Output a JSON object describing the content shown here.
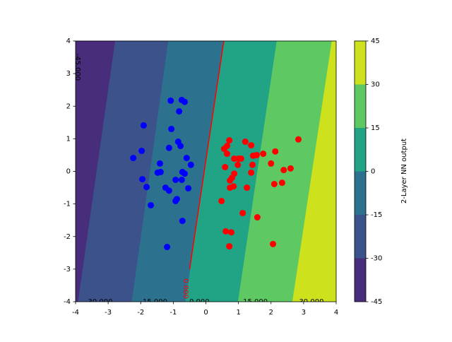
{
  "chart_data": {
    "type": "contour",
    "xlim": [
      -4,
      4
    ],
    "ylim": [
      -4,
      4
    ],
    "xticks": [
      -4,
      -3,
      -2,
      -1,
      0,
      1,
      2,
      3,
      4
    ],
    "yticks": [
      -4,
      -3,
      -2,
      -1,
      0,
      1,
      2,
      3,
      4
    ],
    "contour": {
      "levels": [
        -45,
        -30,
        -15,
        0,
        15,
        30,
        45
      ],
      "colors": [
        "#472d7b",
        "#3b528b",
        "#2c728e",
        "#21a386",
        "#5ec962",
        "#cde11d"
      ],
      "line_x_at_ymin": [
        -5.6,
        -3.92,
        -2.27,
        -0.62,
        0.99,
        2.66,
        4.3
      ],
      "line_x_at_ymax": [
        -4.4,
        -2.78,
        -1.15,
        0.55,
        2.18,
        3.87,
        5.5
      ]
    },
    "contour_labels": [
      {
        "text": "-45.000",
        "x": -3.93,
        "y": 3.2,
        "color": "#000000"
      },
      {
        "text": "-30.000",
        "x": -3.28,
        "y": -4,
        "color": "#000000"
      },
      {
        "text": "-15.000",
        "x": -1.6,
        "y": -4,
        "color": "#000000"
      },
      {
        "text": "0.000",
        "x": -0.62,
        "y": -3.6,
        "color": "#ff0000"
      },
      {
        "text": "0.000",
        "x": -0.2,
        "y": -4,
        "color": "#000000"
      },
      {
        "text": "15.000",
        "x": 1.52,
        "y": -4,
        "color": "#000000"
      },
      {
        "text": "30.000",
        "x": 3.24,
        "y": -4,
        "color": "#000000"
      }
    ],
    "decision_boundary": {
      "x": [
        -0.5,
        0.55
      ],
      "y": [
        -3,
        4
      ],
      "color": "#ff0000"
    },
    "series": [
      {
        "color": "#0000ff",
        "x": [
          -1.08,
          -0.74,
          -0.65,
          -0.82,
          -1.91,
          -1.06,
          -0.85,
          -0.78,
          -1.97,
          -1.13,
          -0.59,
          -2.23,
          -1.41,
          -0.46,
          -1.39,
          -0.72,
          -1.48,
          -0.65,
          -1.95,
          -0.93,
          -0.74,
          -1.82,
          -1.24,
          -0.54,
          -1.13,
          -1.69,
          -0.89,
          -0.93,
          -0.72,
          -1.19
        ],
        "y": [
          2.17,
          2.19,
          2.13,
          1.84,
          1.41,
          1.3,
          0.91,
          0.78,
          0.63,
          0.72,
          0.41,
          0.41,
          0.24,
          0.2,
          -0.02,
          -0.02,
          -0.04,
          -0.07,
          -0.24,
          -0.26,
          -0.26,
          -0.48,
          -0.5,
          -0.52,
          -0.59,
          -1.04,
          -0.85,
          -0.91,
          -1.52,
          -2.32
        ]
      },
      {
        "color": "#ff0000",
        "x": [
          2.84,
          0.72,
          1.21,
          0.65,
          1.39,
          0.56,
          1.76,
          2.13,
          0.65,
          1.56,
          1.45,
          1.0,
          0.87,
          1.08,
          0.98,
          2.0,
          0.59,
          1.43,
          2.6,
          2.39,
          0.87,
          1.39,
          0.8,
          0.74,
          2.1,
          2.34,
          0.85,
          1.26,
          0.74,
          0.48,
          1.13,
          1.58,
          0.61,
          0.78,
          0.72,
          2.06
        ],
        "y": [
          0.98,
          0.95,
          0.91,
          0.78,
          0.8,
          0.69,
          0.54,
          0.61,
          0.54,
          0.5,
          0.48,
          0.39,
          0.39,
          0.39,
          0.2,
          0.24,
          0.13,
          0.2,
          0.09,
          0.04,
          -0.07,
          -0.04,
          -0.2,
          -0.28,
          -0.39,
          -0.35,
          -0.46,
          -0.5,
          -0.5,
          -0.91,
          -1.28,
          -1.41,
          -1.84,
          -1.87,
          -2.3,
          -2.23
        ]
      }
    ],
    "colorbar_label": "2-Layer NN output"
  }
}
